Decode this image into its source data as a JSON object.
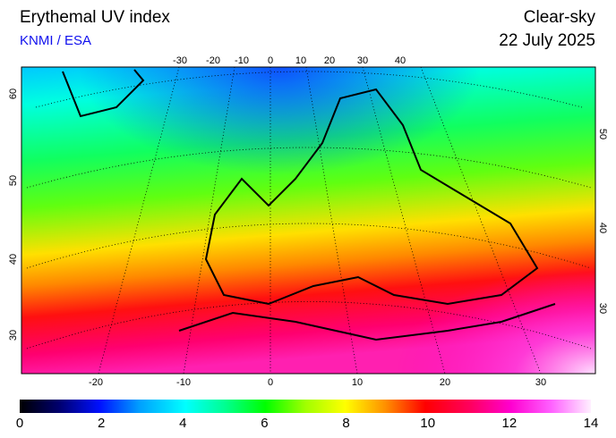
{
  "header": {
    "title": "Erythemal UV index",
    "source": "KNMI / ESA",
    "mode": "Clear-sky",
    "date": "22 July 2025"
  },
  "map": {
    "top_lon_labels": [
      -30,
      -20,
      -10,
      0,
      10,
      20,
      30,
      40
    ],
    "bottom_lon_labels": [
      -20,
      -10,
      0,
      10,
      20,
      30
    ],
    "left_lat_labels": [
      60,
      50,
      40,
      30
    ],
    "right_lat_labels": [
      50,
      40,
      30
    ]
  },
  "colorbar": {
    "ticks": [
      0,
      2,
      4,
      6,
      8,
      10,
      12,
      14
    ]
  }
}
